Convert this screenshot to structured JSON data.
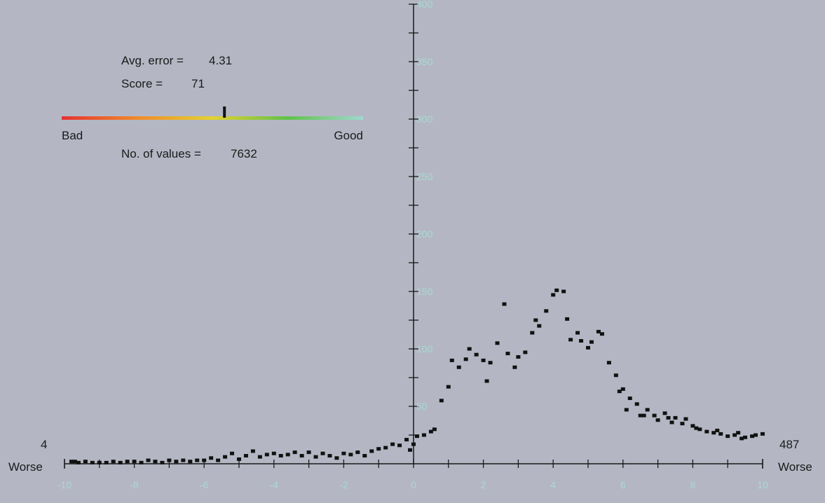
{
  "stats": {
    "avg_error_label": "Avg. error =",
    "avg_error_value": "4.31",
    "score_label": "Score =",
    "score_value": "71",
    "count_label": "No. of values =",
    "count_value": "7632",
    "score_fraction": 0.54
  },
  "score_bar": {
    "bad_label": "Bad",
    "good_label": "Good",
    "gradient": [
      "#e63232",
      "#f08a2a",
      "#e4d22e",
      "#5fc24a",
      "#9fd8d0"
    ]
  },
  "axis_sides": {
    "left_label": "Worse",
    "right_label": "Worse",
    "left_count": "4",
    "right_count": "487"
  },
  "colors": {
    "background": "#b4b7c3",
    "axis": "#1a1a1a",
    "tick_label": "#a9d8d4",
    "marker": "#111111"
  },
  "chart_data": {
    "type": "scatter",
    "xlim": [
      -10,
      10
    ],
    "ylim": [
      0,
      400
    ],
    "x_ticks": [
      "-10",
      "-8",
      "-6",
      "-4",
      "-2",
      "0",
      "2",
      "4",
      "6",
      "8",
      "10"
    ],
    "y_ticks": [
      "50",
      "100",
      "150",
      "200",
      "250",
      "300",
      "350",
      "400"
    ],
    "points": [
      [
        -9.8,
        2
      ],
      [
        -9.7,
        2
      ],
      [
        -9.6,
        1
      ],
      [
        -9.4,
        2
      ],
      [
        -9.2,
        1
      ],
      [
        -9.0,
        1
      ],
      [
        -8.8,
        1
      ],
      [
        -8.6,
        2
      ],
      [
        -8.4,
        1
      ],
      [
        -8.2,
        2
      ],
      [
        -8.0,
        2
      ],
      [
        -7.8,
        1
      ],
      [
        -7.6,
        3
      ],
      [
        -7.4,
        2
      ],
      [
        -7.2,
        1
      ],
      [
        -7.0,
        3
      ],
      [
        -6.8,
        2
      ],
      [
        -6.6,
        3
      ],
      [
        -6.4,
        2
      ],
      [
        -6.2,
        3
      ],
      [
        -6.0,
        3
      ],
      [
        -5.8,
        5
      ],
      [
        -5.6,
        3
      ],
      [
        -5.4,
        6
      ],
      [
        -5.2,
        9
      ],
      [
        -5.0,
        4
      ],
      [
        -4.8,
        7
      ],
      [
        -4.6,
        11
      ],
      [
        -4.4,
        6
      ],
      [
        -4.2,
        8
      ],
      [
        -4.0,
        9
      ],
      [
        -3.8,
        7
      ],
      [
        -3.6,
        8
      ],
      [
        -3.4,
        10
      ],
      [
        -3.2,
        7
      ],
      [
        -3.0,
        10
      ],
      [
        -2.8,
        6
      ],
      [
        -2.6,
        9
      ],
      [
        -2.4,
        7
      ],
      [
        -2.2,
        5
      ],
      [
        -2.0,
        9
      ],
      [
        -1.8,
        8
      ],
      [
        -1.6,
        10
      ],
      [
        -1.4,
        7
      ],
      [
        -1.2,
        11
      ],
      [
        -1.0,
        13
      ],
      [
        -0.8,
        14
      ],
      [
        -0.6,
        17
      ],
      [
        -0.4,
        16
      ],
      [
        -0.2,
        21
      ],
      [
        -0.1,
        12
      ],
      [
        0.0,
        17
      ],
      [
        0.1,
        24
      ],
      [
        0.3,
        25
      ],
      [
        0.5,
        28
      ],
      [
        0.6,
        30
      ],
      [
        0.8,
        55
      ],
      [
        1.0,
        67
      ],
      [
        1.1,
        90
      ],
      [
        1.3,
        84
      ],
      [
        1.5,
        91
      ],
      [
        1.6,
        100
      ],
      [
        1.8,
        95
      ],
      [
        2.0,
        90
      ],
      [
        2.1,
        72
      ],
      [
        2.2,
        88
      ],
      [
        2.4,
        105
      ],
      [
        2.6,
        139
      ],
      [
        2.7,
        96
      ],
      [
        2.9,
        84
      ],
      [
        3.0,
        93
      ],
      [
        3.2,
        97
      ],
      [
        3.4,
        114
      ],
      [
        3.5,
        125
      ],
      [
        3.6,
        120
      ],
      [
        3.8,
        133
      ],
      [
        4.0,
        147
      ],
      [
        4.1,
        151
      ],
      [
        4.3,
        150
      ],
      [
        4.4,
        126
      ],
      [
        4.5,
        108
      ],
      [
        4.7,
        114
      ],
      [
        4.8,
        107
      ],
      [
        5.0,
        101
      ],
      [
        5.1,
        106
      ],
      [
        5.3,
        115
      ],
      [
        5.4,
        113
      ],
      [
        5.6,
        88
      ],
      [
        5.8,
        77
      ],
      [
        6.0,
        65
      ],
      [
        6.1,
        47
      ],
      [
        6.2,
        57
      ],
      [
        6.4,
        52
      ],
      [
        6.6,
        42
      ],
      [
        6.7,
        47
      ],
      [
        6.9,
        42
      ],
      [
        7.0,
        38
      ],
      [
        7.2,
        44
      ],
      [
        7.4,
        36
      ],
      [
        7.5,
        40
      ],
      [
        7.7,
        35
      ],
      [
        7.8,
        39
      ],
      [
        8.0,
        33
      ],
      [
        8.2,
        30
      ],
      [
        8.4,
        28
      ],
      [
        8.6,
        27
      ],
      [
        8.8,
        26
      ],
      [
        9.0,
        24
      ],
      [
        9.2,
        25
      ],
      [
        9.4,
        22
      ],
      [
        9.5,
        23
      ],
      [
        9.7,
        24
      ],
      [
        9.8,
        25
      ],
      [
        10.0,
        26
      ],
      [
        8.1,
        31
      ],
      [
        8.7,
        29
      ],
      [
        9.3,
        27
      ],
      [
        6.5,
        42
      ],
      [
        7.3,
        40
      ],
      [
        5.9,
        63
      ]
    ]
  }
}
